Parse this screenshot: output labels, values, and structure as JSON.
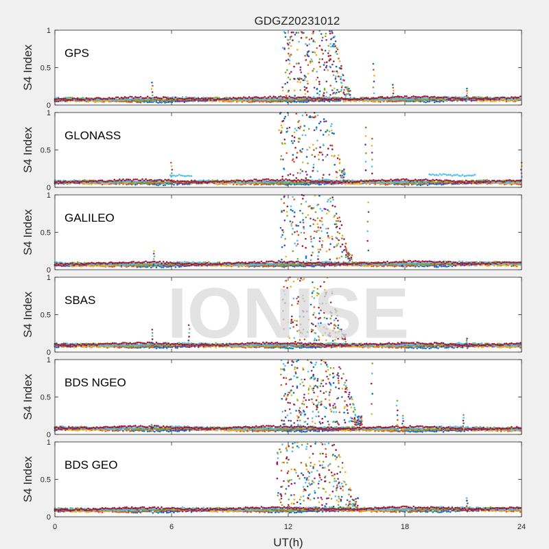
{
  "figure": {
    "title": "GDGZ20231012",
    "xlabel": "UT(h)",
    "watermark": "IONISE"
  },
  "colors": {
    "background": "#f0f0f0",
    "axes_bg": "#ffffff",
    "axis": "#262626",
    "watermark": "#d9d9d9",
    "series": [
      "#0072BD",
      "#D95319",
      "#EDB120",
      "#7E2F8E",
      "#77AC30",
      "#4DBEEE",
      "#A2142F"
    ]
  },
  "chart_data": [
    {
      "type": "scatter",
      "label": "GPS",
      "ylabel": "S4 Index",
      "xlim": [
        0,
        24
      ],
      "ylim": [
        0,
        1
      ],
      "xticks": [
        0,
        6,
        12,
        18,
        24
      ],
      "yticks": [
        0,
        0.5,
        1
      ],
      "xticklabels_visible": false,
      "baseline": 0.07,
      "baseline_end": 0.08,
      "scint_window": [
        11.7,
        15.2
      ],
      "scint_peak": 1.0,
      "scint_density": 260,
      "spikes": [
        [
          5.0,
          0.3
        ],
        [
          16.4,
          0.55
        ],
        [
          17.4,
          0.27
        ],
        [
          21.2,
          0.22
        ]
      ],
      "bumps": []
    },
    {
      "type": "scatter",
      "label": "GLONASS",
      "ylabel": "S4 Index",
      "xlim": [
        0,
        24
      ],
      "ylim": [
        0,
        1
      ],
      "xticks": [
        0,
        6,
        12,
        18,
        24
      ],
      "yticks": [
        0,
        0.5,
        1
      ],
      "xticklabels_visible": false,
      "baseline": 0.07,
      "baseline_end": 0.07,
      "scint_window": [
        11.5,
        15.0
      ],
      "scint_peak": 1.0,
      "scint_density": 170,
      "spikes": [
        [
          6.0,
          0.33
        ],
        [
          16.0,
          0.8
        ],
        [
          16.3,
          0.65
        ],
        [
          24.0,
          0.33
        ]
      ],
      "bumps": [
        [
          6.5,
          0.16
        ],
        [
          19.8,
          0.17
        ],
        [
          21.0,
          0.16
        ]
      ]
    },
    {
      "type": "scatter",
      "label": "GALILEO",
      "ylabel": "S4 Index",
      "xlim": [
        0,
        24
      ],
      "ylim": [
        0,
        1
      ],
      "xticks": [
        0,
        6,
        12,
        18,
        24
      ],
      "yticks": [
        0,
        0.5,
        1
      ],
      "xticklabels_visible": false,
      "baseline": 0.07,
      "baseline_end": 0.08,
      "scint_window": [
        11.6,
        15.3
      ],
      "scint_peak": 1.0,
      "scint_density": 210,
      "spikes": [
        [
          5.1,
          0.25
        ],
        [
          16.1,
          0.9
        ],
        [
          17.9,
          0.13
        ]
      ],
      "bumps": []
    },
    {
      "type": "scatter",
      "label": "SBAS",
      "ylabel": "S4 Index",
      "xlim": [
        0,
        24
      ],
      "ylim": [
        0,
        1
      ],
      "xticks": [
        0,
        6,
        12,
        18,
        24
      ],
      "yticks": [
        0,
        0.5,
        1
      ],
      "xticklabels_visible": false,
      "baseline": 0.09,
      "baseline_end": 0.09,
      "scint_window": [
        11.7,
        15.0
      ],
      "scint_peak": 1.0,
      "scint_density": 170,
      "spikes": [
        [
          5.0,
          0.3
        ],
        [
          6.9,
          0.36
        ],
        [
          21.2,
          0.18
        ]
      ],
      "bumps": []
    },
    {
      "type": "scatter",
      "label": "BDS NGEO",
      "ylabel": "S4 Index",
      "xlim": [
        0,
        24
      ],
      "ylim": [
        0,
        1
      ],
      "xticks": [
        0,
        6,
        12,
        18,
        24
      ],
      "yticks": [
        0,
        0.5,
        1
      ],
      "xticklabels_visible": false,
      "baseline": 0.08,
      "baseline_end": 0.07,
      "scint_window": [
        11.6,
        15.8
      ],
      "scint_peak": 1.0,
      "scint_density": 330,
      "spikes": [
        [
          16.3,
          0.95
        ],
        [
          17.6,
          0.45
        ],
        [
          17.9,
          0.25
        ],
        [
          21.0,
          0.26
        ],
        [
          5.0,
          0.13
        ]
      ],
      "bumps": []
    },
    {
      "type": "scatter",
      "label": "BDS GEO",
      "ylabel": "S4 Index",
      "xlim": [
        0,
        24
      ],
      "ylim": [
        0,
        1
      ],
      "xticks": [
        0,
        6,
        12,
        18,
        24
      ],
      "yticks": [
        0,
        0.5,
        1
      ],
      "xticklabels_visible": false,
      "baseline": 0.09,
      "baseline_end": 0.1,
      "scint_window": [
        11.4,
        15.6
      ],
      "scint_peak": 1.0,
      "scint_density": 260,
      "spikes": [
        [
          21.2,
          0.25
        ]
      ],
      "bumps": []
    }
  ],
  "shared_xaxis": {
    "ticks": [
      0,
      6,
      12,
      18,
      24
    ],
    "ticklabels": [
      "0",
      "6",
      "12",
      "18",
      "24"
    ]
  }
}
